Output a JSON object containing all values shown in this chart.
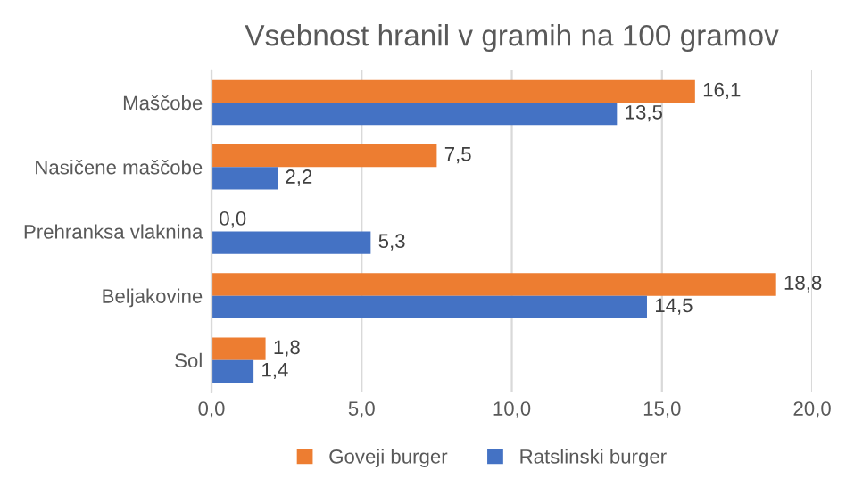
{
  "chart_data": {
    "type": "bar",
    "orientation": "horizontal",
    "title": "Vsebnost hranil v gramih na 100 gramov",
    "categories": [
      "Maščobe",
      "Nasičene maščobe",
      "Prehranksa vlaknina",
      "Beljakovine",
      "Sol"
    ],
    "series": [
      {
        "name": "Goveji burger",
        "color": "#ed7d31",
        "values": [
          16.1,
          7.5,
          0.0,
          18.8,
          1.8
        ],
        "value_labels": [
          "16,1",
          "7,5",
          "0,0",
          "18,8",
          "1,8"
        ]
      },
      {
        "name": "Ratslinski burger",
        "color": "#4472c4",
        "values": [
          13.5,
          2.2,
          5.3,
          14.5,
          1.4
        ],
        "value_labels": [
          "13,5",
          "2,2",
          "5,3",
          "14,5",
          "1,4"
        ]
      }
    ],
    "xlim": [
      0,
      20
    ],
    "xticks": [
      {
        "value": 0,
        "label": "0,0"
      },
      {
        "value": 5,
        "label": "5,0"
      },
      {
        "value": 10,
        "label": "10,0"
      },
      {
        "value": 15,
        "label": "15,0"
      },
      {
        "value": 20,
        "label": "20,0"
      }
    ],
    "grid": "x",
    "legend": "bottom"
  }
}
